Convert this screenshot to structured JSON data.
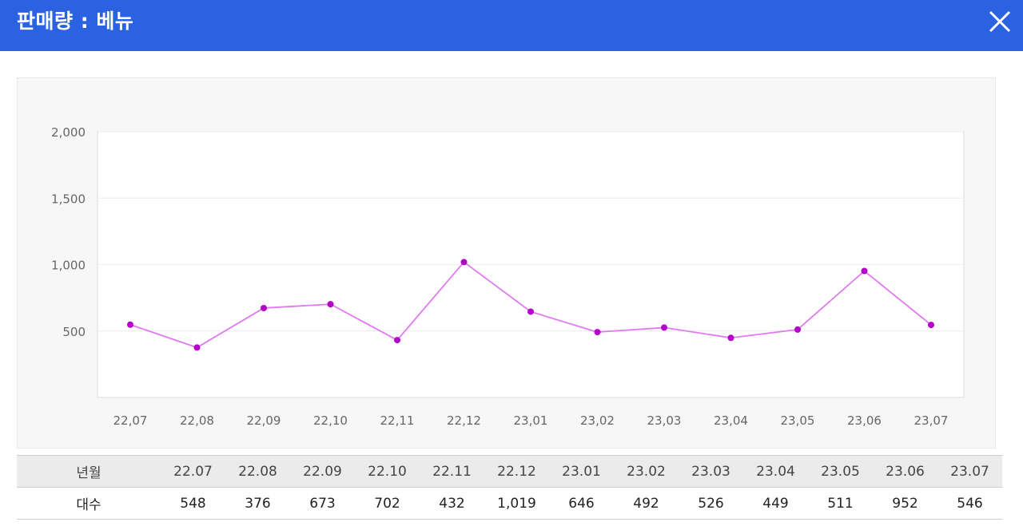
{
  "header": {
    "title": "판매량 : 베뉴"
  },
  "chart_data": {
    "type": "line",
    "title": "",
    "xlabel": "",
    "ylabel": "",
    "categories": [
      "22,07",
      "22,08",
      "22,09",
      "22,10",
      "22,11",
      "22,12",
      "23,01",
      "23,02",
      "23,03",
      "23,04",
      "23,05",
      "23,06",
      "23,07"
    ],
    "series": [
      {
        "values": [
          548,
          376,
          673,
          702,
          432,
          1019,
          646,
          492,
          526,
          449,
          511,
          952,
          546
        ],
        "color": "#b400c8"
      }
    ],
    "ylim": [
      0,
      2000
    ],
    "yticks": [
      500,
      1000,
      1500,
      2000
    ],
    "ytick_labels": [
      "500",
      "1,000",
      "1,500",
      "2,000"
    ],
    "grid": true,
    "legend": "none"
  },
  "table": {
    "header_label": "년월",
    "row_label": "대수",
    "months": [
      "22.07",
      "22.08",
      "22.09",
      "22.10",
      "22.11",
      "22.12",
      "23.01",
      "23.02",
      "23.03",
      "23.04",
      "23.05",
      "23.06",
      "23.07"
    ],
    "counts": [
      "548",
      "376",
      "673",
      "702",
      "432",
      "1,019",
      "646",
      "492",
      "526",
      "449",
      "511",
      "952",
      "546"
    ]
  }
}
